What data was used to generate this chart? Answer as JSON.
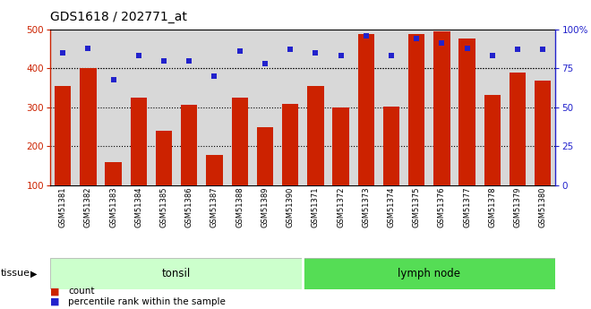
{
  "title": "GDS1618 / 202771_at",
  "categories": [
    "GSM51381",
    "GSM51382",
    "GSM51383",
    "GSM51384",
    "GSM51385",
    "GSM51386",
    "GSM51387",
    "GSM51388",
    "GSM51389",
    "GSM51390",
    "GSM51371",
    "GSM51372",
    "GSM51373",
    "GSM51374",
    "GSM51375",
    "GSM51376",
    "GSM51377",
    "GSM51378",
    "GSM51379",
    "GSM51380"
  ],
  "counts": [
    355,
    400,
    160,
    325,
    240,
    307,
    177,
    325,
    250,
    310,
    355,
    300,
    487,
    302,
    487,
    495,
    477,
    333,
    390,
    368
  ],
  "percentiles": [
    85,
    88,
    68,
    83,
    80,
    80,
    70,
    86,
    78,
    87,
    85,
    83,
    96,
    83,
    94,
    91,
    88,
    83,
    87,
    87
  ],
  "bar_color": "#cc2200",
  "dot_color": "#2222cc",
  "tonsil_count": 10,
  "lymph_count": 10,
  "tonsil_label": "tonsil",
  "lymph_label": "lymph node",
  "tonsil_bg": "#ccffcc",
  "lymph_bg": "#55dd55",
  "group_label": "tissue",
  "ylim_left": [
    100,
    500
  ],
  "ylim_right": [
    0,
    100
  ],
  "yticks_left": [
    100,
    200,
    300,
    400,
    500
  ],
  "yticks_right": [
    0,
    25,
    50,
    75,
    100
  ],
  "grid_values": [
    200,
    300,
    400
  ],
  "legend_count": "count",
  "legend_pct": "percentile rank within the sample",
  "plot_bg": "#d8d8d8",
  "fig_bg": "#ffffff"
}
